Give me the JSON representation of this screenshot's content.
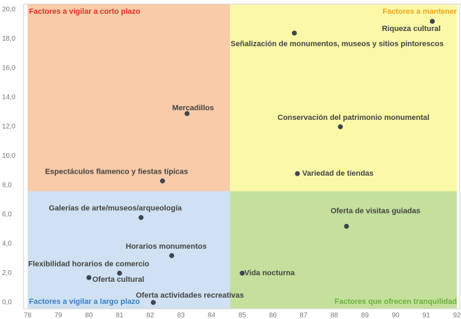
{
  "chart_data": {
    "type": "scatter",
    "xlim": [
      78,
      92
    ],
    "ylim": [
      0,
      20
    ],
    "xticks": [
      78,
      79,
      80,
      81,
      82,
      83,
      84,
      85,
      86,
      87,
      88,
      89,
      90,
      91,
      92
    ],
    "yticks": [
      {
        "value": 0,
        "label": "0,0"
      },
      {
        "value": 2,
        "label": "2,0"
      },
      {
        "value": 4,
        "label": "4,0"
      },
      {
        "value": 6,
        "label": "6,0"
      },
      {
        "value": 8,
        "label": "8,0"
      },
      {
        "value": 10,
        "label": "10,0"
      },
      {
        "value": 12,
        "label": "12,0"
      },
      {
        "value": 14,
        "label": "14,0"
      },
      {
        "value": 16,
        "label": "16,0"
      },
      {
        "value": 18,
        "label": "18,0"
      },
      {
        "value": 20,
        "label": "20,0"
      }
    ],
    "quadrants": [
      {
        "label": "Factores a vigilar a corto plazo",
        "color": "#f9cba8",
        "label_color": "#e4302a",
        "xlim": [
          78,
          84.6
        ],
        "ylim": [
          7.6,
          20
        ]
      },
      {
        "label": "Factores a mantener",
        "color": "#fbf9a8",
        "label_color": "#f2a516",
        "xlim": [
          84.6,
          92
        ],
        "ylim": [
          7.6,
          20
        ]
      },
      {
        "label": "Factores a vigilar a largo plazo",
        "color": "#cfe1f2",
        "label_color": "#3b7fc4",
        "xlim": [
          78,
          84.6
        ],
        "ylim": [
          0,
          7.6
        ]
      },
      {
        "label": "Factores que ofrecen tranquilidad",
        "color": "#c4e09c",
        "label_color": "#6ab23c",
        "xlim": [
          84.6,
          92
        ],
        "ylim": [
          0,
          7.6
        ]
      }
    ],
    "color": "#3d4450",
    "labels": [
      "Riqueza cultural",
      "Señalización de monumentos, museos y sitios pintorescos",
      "Mercadillos",
      "Conservación del patrimonio monumental",
      "Espectáculos flamenco y  fiestas típicas",
      "Variedad de tiendas",
      "Galerías de arte/museos/arqueología",
      "Oferta de visitas guiadas",
      "Horarios monumentos",
      "Flexibilidad horarios de comercio",
      "Oferta cultural",
      "Vida nocturna",
      "Oferta actividades recreativas"
    ],
    "x": [
      91.2,
      86.7,
      83.2,
      88.2,
      82.4,
      86.8,
      81.7,
      88.4,
      82.7,
      81.0,
      80.0,
      85.0,
      82.1
    ],
    "values": [
      19.2,
      18.4,
      12.9,
      12.0,
      8.3,
      8.8,
      5.8,
      5.2,
      3.2,
      2.0,
      1.7,
      2.0,
      0
    ]
  }
}
